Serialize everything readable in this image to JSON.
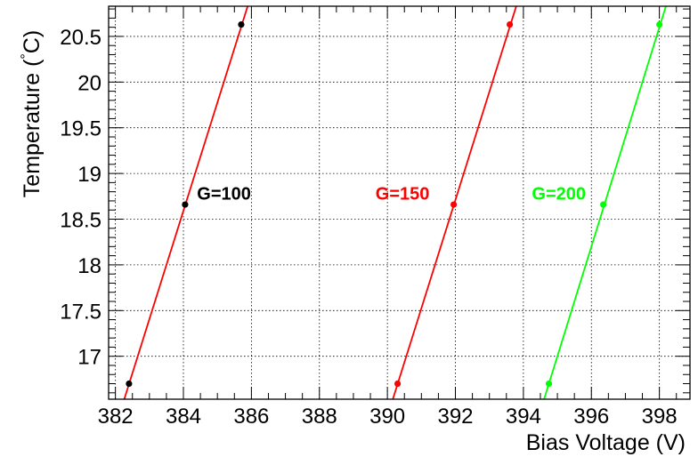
{
  "chart_data": {
    "type": "scatter",
    "title": "",
    "xlabel": "Bias Voltage (V)",
    "ylabel": "Temperature (",
    "ylabel_degree": "°",
    "ylabel_unit": "C)",
    "xlim": [
      381.8,
      398.9
    ],
    "ylim": [
      16.53,
      20.83
    ],
    "grid": true,
    "legend": "none",
    "x_ticks": [
      382,
      384,
      386,
      388,
      390,
      392,
      394,
      396,
      398
    ],
    "x_tick_labels": [
      "382",
      "384",
      "386",
      "388",
      "390",
      "392",
      "394",
      "396",
      "398"
    ],
    "y_ticks": [
      17,
      17.5,
      18,
      18.5,
      19,
      19.5,
      20,
      20.5
    ],
    "y_tick_labels": [
      "17",
      "17.5",
      "18",
      "18.5",
      "19",
      "19.5",
      "20",
      "20.5"
    ],
    "series": [
      {
        "annotation": "G=100",
        "color": "#000000",
        "line_color": "#ff0000",
        "points": [
          [
            382.4,
            16.7
          ],
          [
            384.05,
            18.66
          ],
          [
            385.7,
            20.63
          ]
        ],
        "fit": [
          [
            382.15,
            16.4
          ],
          [
            386.05,
            21.02
          ]
        ],
        "annotation_pos": [
          384.4,
          18.78
        ]
      },
      {
        "annotation": "G=150",
        "color": "#ff0000",
        "line_color": "#ff0000",
        "points": [
          [
            390.3,
            16.7
          ],
          [
            391.95,
            18.66
          ],
          [
            393.6,
            20.63
          ]
        ],
        "fit": [
          [
            390.05,
            16.4
          ],
          [
            393.95,
            21.02
          ]
        ],
        "annotation_pos": [
          389.65,
          18.78
        ]
      },
      {
        "annotation": "G=200",
        "color": "#00ff00",
        "line_color": "#00ff00",
        "points": [
          [
            394.75,
            16.7
          ],
          [
            396.35,
            18.66
          ],
          [
            398.0,
            20.63
          ]
        ],
        "fit": [
          [
            394.5,
            16.4
          ],
          [
            398.35,
            21.02
          ]
        ],
        "annotation_pos": [
          394.25,
          18.78
        ]
      }
    ]
  }
}
